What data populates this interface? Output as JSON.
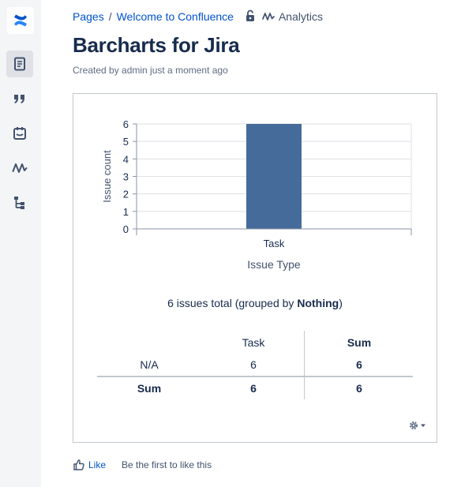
{
  "sidebar": {
    "logo": "confluence-logo",
    "items": [
      {
        "icon": "page-icon",
        "active": true
      },
      {
        "icon": "quote-icon",
        "active": false
      },
      {
        "icon": "calendar-icon",
        "active": false
      },
      {
        "icon": "analytics-icon",
        "active": false
      },
      {
        "icon": "tree-icon",
        "active": false
      }
    ]
  },
  "breadcrumb": {
    "items": [
      "Pages",
      "Welcome to Confluence"
    ],
    "separator": "/",
    "analytics_label": "Analytics"
  },
  "page": {
    "title": "Barcharts for Jira",
    "byline": "Created by admin just a moment ago"
  },
  "chart_data": {
    "type": "bar",
    "categories": [
      "Task"
    ],
    "values": [
      6
    ],
    "xlabel": "Issue Type",
    "ylabel": "Issue count",
    "ylim": [
      0,
      6
    ],
    "yticks": [
      0,
      1,
      2,
      3,
      4,
      5,
      6
    ],
    "bar_color": "#456b9a",
    "grid": true
  },
  "summary": {
    "prefix": "6 issues total (grouped by ",
    "group": "Nothing",
    "suffix": ")"
  },
  "stats_table": {
    "col_task": "Task",
    "col_sum": "Sum",
    "row_label": "N/A",
    "row_task": "6",
    "row_sum": "6",
    "total_label": "Sum",
    "total_task": "6",
    "total_sum": "6"
  },
  "footer": {
    "like_label": "Like",
    "like_text": "Be the first to like this"
  },
  "colors": {
    "link": "#0052cc",
    "text": "#172b4d",
    "muted": "#5e6c84",
    "sidebar_bg": "#f4f5f7"
  }
}
